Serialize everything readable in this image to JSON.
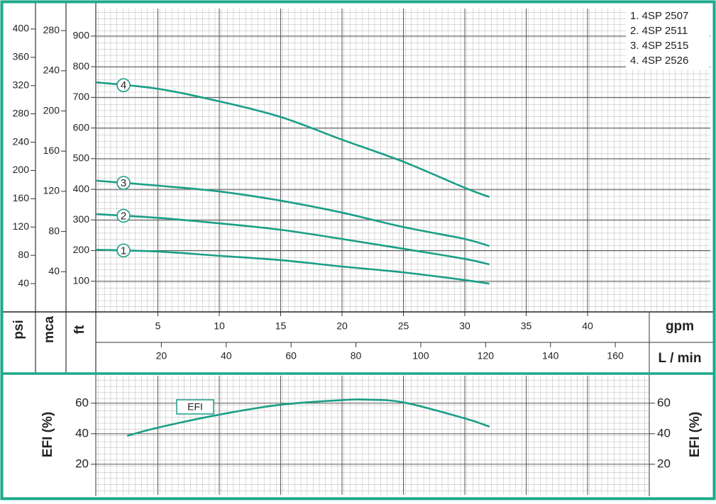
{
  "chart_data": [
    {
      "type": "line",
      "x": [
        0,
        5,
        10,
        15,
        20,
        25,
        30,
        32
      ],
      "xlabel": "gpm",
      "xlim": [
        0,
        50
      ],
      "xticks": [
        5,
        10,
        15,
        20,
        25,
        30,
        35,
        40
      ],
      "ylabel": "ft",
      "ylim": [
        0,
        990
      ],
      "yticks": [
        100,
        200,
        300,
        400,
        500,
        600,
        700,
        800,
        900
      ],
      "extra_y_axes": [
        {
          "label": "psi",
          "lim": [
            0,
            429
          ],
          "ticks": [
            40,
            80,
            120,
            160,
            200,
            240,
            280,
            320,
            360,
            400
          ]
        },
        {
          "label": "mca",
          "lim": [
            0,
            302
          ],
          "ticks": [
            40,
            80,
            120,
            160,
            200,
            240,
            280
          ]
        }
      ],
      "extra_x_axes": [
        {
          "label": "L / min",
          "lim": [
            0,
            189.3
          ],
          "ticks": [
            20,
            40,
            60,
            80,
            100,
            120,
            140,
            160
          ]
        }
      ],
      "grid": true,
      "series": [
        {
          "name": "1. 4SP 2507",
          "label": "1",
          "color": "#1a9e87",
          "values": [
            203,
            197,
            183,
            169,
            148,
            129,
            104,
            92
          ]
        },
        {
          "name": "2. 4SP 2511",
          "label": "2",
          "color": "#1a9e87",
          "values": [
            319,
            307,
            289,
            268,
            238,
            206,
            173,
            155
          ]
        },
        {
          "name": "3. 4SP 2515",
          "label": "3",
          "color": "#1a9e87",
          "values": [
            428,
            412,
            393,
            363,
            324,
            277,
            238,
            215
          ]
        },
        {
          "name": "4. 4SP 2526",
          "label": "4",
          "color": "#1a9e87",
          "values": [
            749,
            728,
            687,
            636,
            562,
            490,
            405,
            375
          ]
        }
      ]
    },
    {
      "type": "line",
      "x": [
        2.5,
        5,
        10,
        15,
        20,
        22,
        25,
        30,
        32
      ],
      "xlim": [
        0,
        45
      ],
      "ylabel": "EFI (%)",
      "ylim": [
        0,
        78
      ],
      "yticks": [
        20,
        40,
        60
      ],
      "grid": true,
      "series": [
        {
          "name": "EFI",
          "color": "#1a9e87",
          "values": [
            38.6,
            44,
            52.5,
            59,
            62,
            62.3,
            60.5,
            50,
            44.6
          ]
        }
      ]
    }
  ]
}
